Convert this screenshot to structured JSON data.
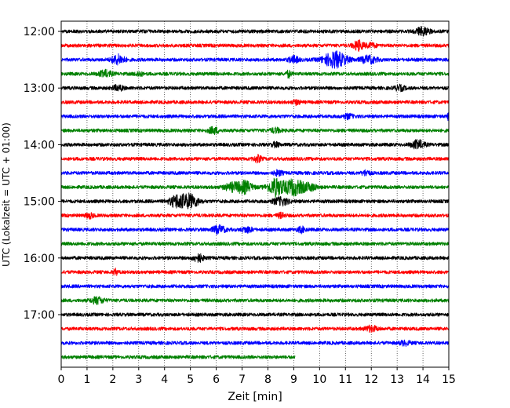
{
  "chart_data": {
    "type": "line",
    "xlabel": "Zeit  [min]",
    "ylabel": "UTC (Lokalzeit = UTC + 01:00)",
    "xlim": [
      0,
      15
    ],
    "x_ticks": [
      "0",
      "1",
      "2",
      "3",
      "4",
      "5",
      "6",
      "7",
      "8",
      "9",
      "10",
      "11",
      "12",
      "13",
      "14",
      "15"
    ],
    "y_tick_labels": [
      "12:00",
      "13:00",
      "14:00",
      "15:00",
      "16:00",
      "17:00"
    ],
    "grid": "vertical dotted",
    "colors": {
      "cycle": [
        "#000000",
        "#ff0000",
        "#0000ff",
        "#008000"
      ]
    },
    "traces": [
      {
        "start": "12:00",
        "bursts": [
          [
            14.0,
            0.25,
            1.6
          ]
        ]
      },
      {
        "start": "12:15",
        "bursts": [
          [
            11.5,
            0.2,
            1.8
          ],
          [
            12.0,
            0.2,
            0.8
          ]
        ]
      },
      {
        "start": "12:30",
        "bursts": [
          [
            2.2,
            0.25,
            1.8
          ],
          [
            9.0,
            0.2,
            1.2
          ],
          [
            10.6,
            0.45,
            3.0
          ],
          [
            11.9,
            0.3,
            1.4
          ]
        ]
      },
      {
        "start": "12:45",
        "bursts": [
          [
            1.7,
            0.25,
            1.2
          ],
          [
            3.0,
            0.15,
            0.8
          ],
          [
            8.8,
            0.1,
            1.2
          ]
        ]
      },
      {
        "start": "13:00",
        "bursts": [
          [
            2.2,
            0.2,
            1.0
          ],
          [
            13.1,
            0.2,
            0.9
          ]
        ]
      },
      {
        "start": "13:15",
        "bursts": [
          [
            9.1,
            0.15,
            0.8
          ]
        ]
      },
      {
        "start": "13:30",
        "bursts": [
          [
            11.1,
            0.2,
            0.8
          ],
          [
            15.0,
            0.05,
            1.6
          ]
        ]
      },
      {
        "start": "13:45",
        "bursts": [
          [
            5.9,
            0.2,
            1.2
          ],
          [
            8.3,
            0.2,
            0.8
          ]
        ]
      },
      {
        "start": "14:00",
        "bursts": [
          [
            8.3,
            0.15,
            0.8
          ],
          [
            13.8,
            0.25,
            1.6
          ]
        ]
      },
      {
        "start": "14:15",
        "bursts": [
          [
            7.6,
            0.15,
            1.2
          ]
        ]
      },
      {
        "start": "14:30",
        "bursts": [
          [
            8.4,
            0.15,
            1.0
          ],
          [
            11.8,
            0.15,
            1.0
          ]
        ]
      },
      {
        "start": "14:45",
        "bursts": [
          [
            6.6,
            0.3,
            1.4
          ],
          [
            7.1,
            0.3,
            2.2
          ],
          [
            8.3,
            0.3,
            3.4
          ],
          [
            9.0,
            0.35,
            3.0
          ],
          [
            9.6,
            0.3,
            1.2
          ]
        ]
      },
      {
        "start": "15:00",
        "bursts": [
          [
            4.5,
            0.3,
            2.4
          ],
          [
            5.0,
            0.3,
            2.6
          ],
          [
            8.5,
            0.3,
            1.4
          ]
        ]
      },
      {
        "start": "15:15",
        "bursts": [
          [
            1.1,
            0.15,
            0.9
          ],
          [
            8.5,
            0.15,
            0.8
          ]
        ]
      },
      {
        "start": "15:30",
        "bursts": [
          [
            6.1,
            0.25,
            1.4
          ],
          [
            7.2,
            0.2,
            1.0
          ],
          [
            9.3,
            0.15,
            1.0
          ]
        ]
      },
      {
        "start": "15:45",
        "bursts": []
      },
      {
        "start": "16:00",
        "bursts": [
          [
            5.3,
            0.2,
            1.4
          ]
        ]
      },
      {
        "start": "16:15",
        "bursts": [
          [
            2.1,
            0.1,
            1.0
          ]
        ]
      },
      {
        "start": "16:30",
        "bursts": []
      },
      {
        "start": "16:45",
        "bursts": [
          [
            1.4,
            0.25,
            1.2
          ]
        ]
      },
      {
        "start": "17:00",
        "bursts": []
      },
      {
        "start": "17:15",
        "bursts": [
          [
            12.0,
            0.25,
            1.0
          ]
        ]
      },
      {
        "start": "17:30",
        "bursts": [
          [
            13.3,
            0.2,
            0.8
          ]
        ]
      },
      {
        "start": "17:45",
        "bursts": [],
        "end_min": 9.05
      }
    ]
  }
}
